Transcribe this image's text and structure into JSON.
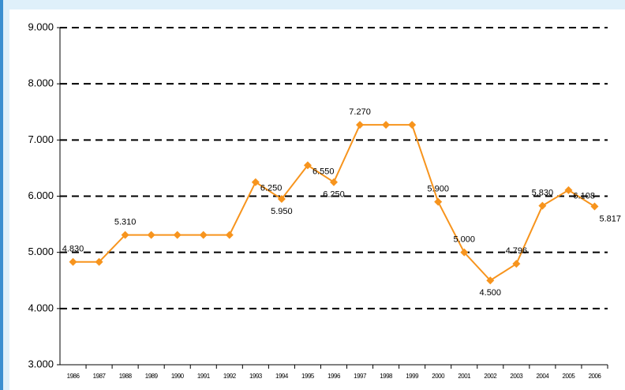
{
  "chart_data": {
    "type": "line",
    "categories": [
      "1986",
      "1987",
      "1988",
      "1989",
      "1990",
      "1991",
      "1992",
      "1993",
      "1994",
      "1995",
      "1996",
      "1997",
      "1998",
      "1999",
      "2000",
      "2001",
      "2002",
      "2003",
      "2004",
      "2005",
      "2006"
    ],
    "series": [
      {
        "color": "#f7941d",
        "values": [
          4830,
          4830,
          5310,
          5310,
          5310,
          5310,
          5310,
          6250,
          5950,
          6550,
          6250,
          7270,
          7270,
          7270,
          5900,
          5000,
          4500,
          4796,
          5830,
          6108,
          5817
        ],
        "value_labels": [
          "4.830",
          null,
          "5.310",
          null,
          null,
          null,
          null,
          "6.250",
          "5.950",
          "6.550",
          "6.250",
          "7.270",
          null,
          null,
          "5.900",
          "5.000",
          "4.500",
          "4.796",
          "5.830",
          "6.108",
          "5.817"
        ]
      }
    ],
    "ylim": [
      3000,
      9000
    ],
    "yticks": [
      {
        "value": 3000,
        "label": "3.000"
      },
      {
        "value": 4000,
        "label": "4.000"
      },
      {
        "value": 5000,
        "label": "5.000"
      },
      {
        "value": 6000,
        "label": "6.000"
      },
      {
        "value": 7000,
        "label": "7.000"
      },
      {
        "value": 8000,
        "label": "8.000"
      },
      {
        "value": 9000,
        "label": "9.000"
      }
    ],
    "grid": true
  }
}
